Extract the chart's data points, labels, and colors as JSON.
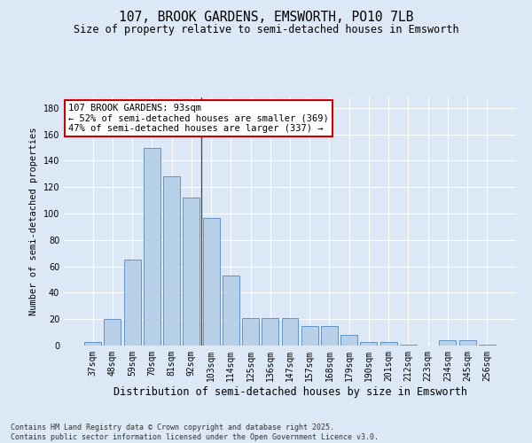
{
  "title": "107, BROOK GARDENS, EMSWORTH, PO10 7LB",
  "subtitle": "Size of property relative to semi-detached houses in Emsworth",
  "xlabel": "Distribution of semi-detached houses by size in Emsworth",
  "ylabel": "Number of semi-detached properties",
  "categories": [
    "37sqm",
    "48sqm",
    "59sqm",
    "70sqm",
    "81sqm",
    "92sqm",
    "103sqm",
    "114sqm",
    "125sqm",
    "136sqm",
    "147sqm",
    "157sqm",
    "168sqm",
    "179sqm",
    "190sqm",
    "201sqm",
    "212sqm",
    "223sqm",
    "234sqm",
    "245sqm",
    "256sqm"
  ],
  "values": [
    3,
    20,
    65,
    150,
    128,
    112,
    97,
    53,
    21,
    21,
    21,
    15,
    15,
    8,
    3,
    3,
    1,
    0,
    4,
    4,
    1
  ],
  "bar_color": "#b8d0e8",
  "bar_edge_color": "#5588bb",
  "highlight_line_index": 5,
  "highlight_line_color": "#444444",
  "annotation_text": "107 BROOK GARDENS: 93sqm\n← 52% of semi-detached houses are smaller (369)\n47% of semi-detached houses are larger (337) →",
  "annotation_box_color": "#ffffff",
  "annotation_box_edgecolor": "#cc0000",
  "ylim": [
    0,
    188
  ],
  "yticks": [
    0,
    20,
    40,
    60,
    80,
    100,
    120,
    140,
    160,
    180
  ],
  "background_color": "#dce8f5",
  "grid_color": "#ffffff",
  "footer": "Contains HM Land Registry data © Crown copyright and database right 2025.\nContains public sector information licensed under the Open Government Licence v3.0.",
  "title_fontsize": 10.5,
  "subtitle_fontsize": 8.5,
  "xlabel_fontsize": 8.5,
  "ylabel_fontsize": 7.5,
  "tick_fontsize": 7,
  "footer_fontsize": 6,
  "annotation_fontsize": 7.5
}
